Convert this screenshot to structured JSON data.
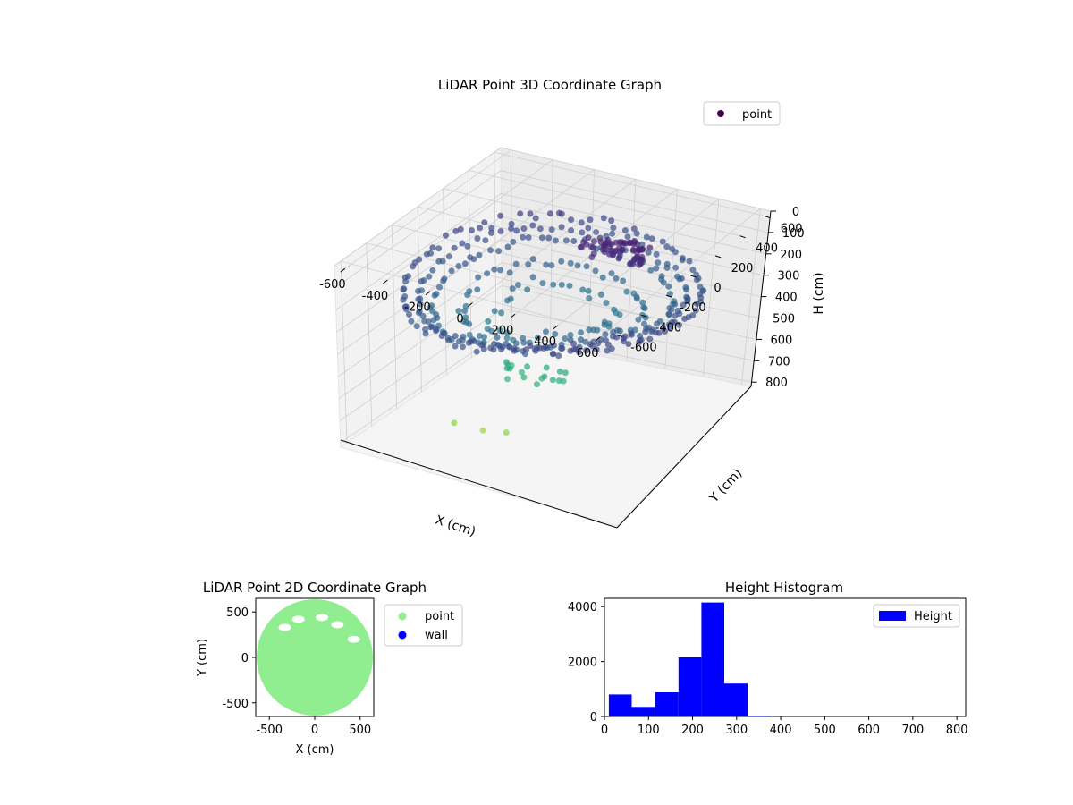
{
  "chart_data": [
    {
      "type": "scatter",
      "projection": "3d",
      "title": "LiDAR Point 3D Coordinate Graph",
      "xlabel": "X (cm)",
      "ylabel": "Y (cm)",
      "zlabel": "H (cm)",
      "xlim": [
        -650,
        650
      ],
      "ylim": [
        -650,
        650
      ],
      "zlim": [
        820,
        0
      ],
      "xticks": [
        -600,
        -400,
        -200,
        0,
        200,
        400,
        600
      ],
      "yticks": [
        -600,
        -400,
        -200,
        0,
        200,
        400,
        600
      ],
      "zticks": [
        0,
        100,
        200,
        300,
        400,
        500,
        600,
        700,
        800
      ],
      "grid": true,
      "legend": {
        "placement": "upper-right",
        "entries": [
          "point"
        ]
      },
      "colormap": "viridis",
      "series": [
        {
          "name": "point",
          "color": "#440154",
          "rings": [
            {
              "radius": 620,
              "height": 210,
              "spread": 20
            },
            {
              "radius": 560,
              "height": 235,
              "spread": 20
            },
            {
              "radius": 500,
              "height": 260,
              "spread": 25
            },
            {
              "radius": 380,
              "height": 300,
              "spread": 40
            },
            {
              "radius": 250,
              "height": 330,
              "spread": 60
            }
          ],
          "clusters": [
            {
              "x": 150,
              "y": 250,
              "h": 110,
              "count": 70
            },
            {
              "x": -50,
              "y": -100,
              "h": 560,
              "count": 18
            },
            {
              "x": -150,
              "y": -300,
              "h": 760,
              "count": 3
            }
          ]
        }
      ]
    },
    {
      "type": "scatter",
      "title": "LiDAR Point 2D Coordinate Graph",
      "xlabel": "X (cm)",
      "ylabel": "Y (cm)",
      "xlim": [
        -650,
        650
      ],
      "ylim": [
        -650,
        650
      ],
      "xticks": [
        -500,
        0,
        500
      ],
      "yticks": [
        -500,
        0,
        500
      ],
      "legend": {
        "placement": "outside-right",
        "entries": [
          "point",
          "wall"
        ]
      },
      "series": [
        {
          "name": "point",
          "color": "#90ee90",
          "shape": "disc",
          "radius": 640
        },
        {
          "name": "wall",
          "color": "#0000ff",
          "values": []
        }
      ]
    },
    {
      "type": "bar",
      "subtype": "histogram",
      "title": "Height Histogram",
      "xlim": [
        0,
        820
      ],
      "ylim": [
        0,
        4300
      ],
      "xticks": [
        0,
        100,
        200,
        300,
        400,
        500,
        600,
        700,
        800
      ],
      "yticks": [
        0,
        2000,
        4000
      ],
      "legend": {
        "placement": "upper-right",
        "entries": [
          "Height"
        ]
      },
      "series": [
        {
          "name": "Height",
          "color": "#0000ff",
          "bin_edges": [
            10,
            62,
            115,
            168,
            220,
            272,
            325,
            377,
            430,
            482,
            535,
            587,
            640,
            692,
            745,
            797
          ],
          "values": [
            800,
            350,
            880,
            2150,
            4150,
            1200,
            30,
            5,
            3,
            2,
            2,
            2,
            2,
            1,
            1
          ]
        }
      ]
    }
  ]
}
